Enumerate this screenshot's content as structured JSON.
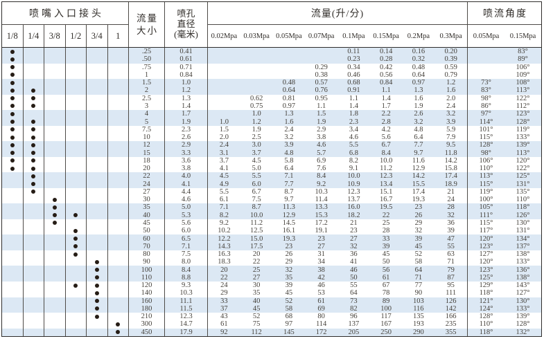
{
  "header": {
    "inlet_title": "喷嘴入口接头",
    "inlet_sizes": [
      "1/8",
      "1/4",
      "3/8",
      "1/2",
      "3/4",
      "1"
    ],
    "flow_size_line1": "流量",
    "flow_size_line2": "大小",
    "orifice_line1": "喷孔",
    "orifice_line2": "直径",
    "orifice_line3": "(毫米)",
    "flow_title": "流量(升/分)",
    "pressures": [
      "0.02Mpa",
      "0.03Mpa",
      "0.05Mpa",
      "0.07Mpa",
      "0.1Mpa",
      "0.15Mpa",
      "0.2Mpa",
      "0.3Mpa"
    ],
    "angle_title": "喷流角度",
    "angle_pressures": [
      "0.05Mpa",
      "0.15Mpa"
    ]
  },
  "colors": {
    "stripe_blue": "#dce8f4",
    "border_dark": "#2e2c2a",
    "border_inner": "#4d4a46",
    "text": "#44403a",
    "dot": "#261d16"
  },
  "rows": [
    {
      "size": ".25",
      "dia": "0.41",
      "dots": [
        1,
        0,
        0,
        0,
        0,
        0
      ],
      "flows": [
        "",
        "",
        "",
        "",
        "0.11",
        "0.14",
        "0.16",
        "0.20"
      ],
      "angles": [
        "",
        "83°"
      ]
    },
    {
      "size": ".50",
      "dia": "0.61",
      "dots": [
        1,
        0,
        0,
        0,
        0,
        0
      ],
      "flows": [
        "",
        "",
        "",
        "",
        "0.23",
        "0.28",
        "0.32",
        "0.39"
      ],
      "angles": [
        "",
        "89°"
      ]
    },
    {
      "size": ".75",
      "dia": "0.71",
      "dots": [
        1,
        0,
        0,
        0,
        0,
        0
      ],
      "flows": [
        "",
        "",
        "",
        "0.29",
        "0.34",
        "0.42",
        "0.48",
        "0.59"
      ],
      "angles": [
        "",
        "106°"
      ]
    },
    {
      "size": "1",
      "dia": "0.84",
      "dots": [
        1,
        0,
        0,
        0,
        0,
        0
      ],
      "flows": [
        "",
        "",
        "",
        "0.38",
        "0.46",
        "0.56",
        "0.64",
        "0.79"
      ],
      "angles": [
        "",
        "109°"
      ]
    },
    {
      "size": "1.5",
      "dia": "1.0",
      "dots": [
        1,
        0,
        0,
        0,
        0,
        0
      ],
      "flows": [
        "",
        "",
        "0.48",
        "0.57",
        "0.68",
        "0.84",
        "0.97",
        "1.2"
      ],
      "angles": [
        "73°",
        "108°"
      ]
    },
    {
      "size": "2",
      "dia": "1.2",
      "dots": [
        1,
        1,
        0,
        0,
        0,
        0
      ],
      "flows": [
        "",
        "",
        "0.64",
        "0.76",
        "0.91",
        "1.1",
        "1.3",
        "1.6"
      ],
      "angles": [
        "83°",
        "113°"
      ]
    },
    {
      "size": "2.5",
      "dia": "1.3",
      "dots": [
        1,
        1,
        0,
        0,
        0,
        0
      ],
      "flows": [
        "",
        "0.62",
        "0.81",
        "0.95",
        "1.1",
        "1.4",
        "1.6",
        "2.0"
      ],
      "angles": [
        "98°",
        "122°"
      ]
    },
    {
      "size": "3",
      "dia": "1.4",
      "dots": [
        1,
        1,
        0,
        0,
        0,
        0
      ],
      "flows": [
        "",
        "0.75",
        "0.97",
        "1.1",
        "1.4",
        "1.7",
        "1.9",
        "2.4"
      ],
      "angles": [
        "86°",
        "112°"
      ]
    },
    {
      "size": "4",
      "dia": "1.7",
      "dots": [
        1,
        0,
        0,
        0,
        0,
        0
      ],
      "flows": [
        "",
        "1.0",
        "1.3",
        "1.5",
        "1.8",
        "2.2",
        "2.6",
        "3.2"
      ],
      "angles": [
        "97°",
        "123°"
      ]
    },
    {
      "size": "5",
      "dia": "1.9",
      "dots": [
        1,
        1,
        0,
        0,
        0,
        0
      ],
      "flows": [
        "1.0",
        "1.2",
        "1.6",
        "1.9",
        "2.3",
        "2.8",
        "3.2",
        "3.9"
      ],
      "angles": [
        "114°",
        "128°"
      ]
    },
    {
      "size": "7.5",
      "dia": "2.3",
      "dots": [
        1,
        1,
        0,
        0,
        0,
        0
      ],
      "flows": [
        "1.5",
        "1.9",
        "2.4",
        "2.9",
        "3.4",
        "4.2",
        "4.8",
        "5.9"
      ],
      "angles": [
        "101°",
        "119°"
      ]
    },
    {
      "size": "10",
      "dia": "2.6",
      "dots": [
        1,
        1,
        0,
        0,
        0,
        0
      ],
      "flows": [
        "2.0",
        "2.5",
        "3.2",
        "3.8",
        "4.6",
        "5.6",
        "6.4",
        "7.9"
      ],
      "angles": [
        "115°",
        "133°"
      ]
    },
    {
      "size": "12",
      "dia": "2.9",
      "dots": [
        1,
        1,
        0,
        0,
        0,
        0
      ],
      "flows": [
        "2.4",
        "3.0",
        "3.9",
        "4.6",
        "5.5",
        "6.7",
        "7.7",
        "9.5"
      ],
      "angles": [
        "128°",
        "139°"
      ]
    },
    {
      "size": "15",
      "dia": "3.3",
      "dots": [
        1,
        1,
        0,
        0,
        0,
        0
      ],
      "flows": [
        "3.1",
        "3.7",
        "4.8",
        "5.7",
        "6.8",
        "8.4",
        "9.7",
        "11.8"
      ],
      "angles": [
        "98°",
        "113°"
      ]
    },
    {
      "size": "18",
      "dia": "3.6",
      "dots": [
        1,
        1,
        0,
        0,
        0,
        0
      ],
      "flows": [
        "3.7",
        "4.5",
        "5.8",
        "6.9",
        "8.2",
        "10.0",
        "11.6",
        "14.2"
      ],
      "angles": [
        "106°",
        "120°"
      ]
    },
    {
      "size": "20",
      "dia": "3.8",
      "dots": [
        1,
        1,
        0,
        0,
        0,
        0
      ],
      "flows": [
        "4.1",
        "5.0",
        "6.4",
        "7.6",
        "9.1",
        "11.2",
        "12.9",
        "15.8"
      ],
      "angles": [
        "110°",
        "122°"
      ]
    },
    {
      "size": "22",
      "dia": "4.0",
      "dots": [
        0,
        1,
        0,
        0,
        0,
        0
      ],
      "flows": [
        "4.5",
        "5.5",
        "7.1",
        "8.4",
        "10.0",
        "12.3",
        "14.2",
        "17.4"
      ],
      "angles": [
        "113°",
        "125°"
      ]
    },
    {
      "size": "24",
      "dia": "4.1",
      "dots": [
        0,
        1,
        0,
        0,
        0,
        0
      ],
      "flows": [
        "4.9",
        "6.0",
        "7.7",
        "9.2",
        "10.9",
        "13.4",
        "15.5",
        "18.9"
      ],
      "angles": [
        "115°",
        "131°"
      ]
    },
    {
      "size": "27",
      "dia": "4.4",
      "dots": [
        0,
        1,
        0,
        0,
        0,
        0
      ],
      "flows": [
        "5.5",
        "6.7",
        "8.7",
        "10.3",
        "12.3",
        "15.1",
        "17.4",
        "21"
      ],
      "angles": [
        "119°",
        "135°"
      ]
    },
    {
      "size": "30",
      "dia": "4.6",
      "dots": [
        0,
        0,
        1,
        0,
        0,
        0
      ],
      "flows": [
        "6.1",
        "7.5",
        "9.7",
        "11.4",
        "13.7",
        "16.7",
        "19.3",
        "24"
      ],
      "angles": [
        "100°",
        "110°"
      ]
    },
    {
      "size": "35",
      "dia": "5.0",
      "dots": [
        0,
        0,
        1,
        0,
        0,
        0
      ],
      "flows": [
        "7.1",
        "8.7",
        "11.3",
        "13.3",
        "16.0",
        "19.5",
        "23",
        "28"
      ],
      "angles": [
        "105°",
        "118°"
      ]
    },
    {
      "size": "40",
      "dia": "5.3",
      "dots": [
        0,
        0,
        1,
        1,
        0,
        0
      ],
      "flows": [
        "8.2",
        "10.0",
        "12.9",
        "15.3",
        "18.2",
        "22",
        "26",
        "32"
      ],
      "angles": [
        "111°",
        "126°"
      ]
    },
    {
      "size": "45",
      "dia": "5.6",
      "dots": [
        0,
        0,
        1,
        0,
        0,
        0
      ],
      "flows": [
        "9.2",
        "11.2",
        "14.5",
        "17.2",
        "21",
        "25",
        "29",
        "36"
      ],
      "angles": [
        "115°",
        "130°"
      ]
    },
    {
      "size": "50",
      "dia": "6.0",
      "dots": [
        0,
        0,
        0,
        1,
        0,
        0
      ],
      "flows": [
        "10.2",
        "12.5",
        "16.1",
        "19.1",
        "23",
        "28",
        "32",
        "39"
      ],
      "angles": [
        "117°",
        "131°"
      ]
    },
    {
      "size": "60",
      "dia": "6.5",
      "dots": [
        0,
        0,
        0,
        1,
        0,
        0
      ],
      "flows": [
        "12.2",
        "15.0",
        "19.3",
        "23",
        "27",
        "33",
        "39",
        "47"
      ],
      "angles": [
        "120°",
        "134°"
      ]
    },
    {
      "size": "70",
      "dia": "7.1",
      "dots": [
        0,
        0,
        0,
        1,
        0,
        0
      ],
      "flows": [
        "14.3",
        "17.5",
        "23",
        "27",
        "32",
        "39",
        "45",
        "55"
      ],
      "angles": [
        "123°",
        "137°"
      ]
    },
    {
      "size": "80",
      "dia": "7.5",
      "dots": [
        0,
        0,
        0,
        1,
        0,
        0
      ],
      "flows": [
        "16.3",
        "20",
        "26",
        "31",
        "36",
        "45",
        "52",
        "63"
      ],
      "angles": [
        "127°",
        "138°"
      ]
    },
    {
      "size": "90",
      "dia": "8.0",
      "dots": [
        0,
        0,
        0,
        0,
        1,
        0
      ],
      "flows": [
        "18.3",
        "22",
        "29",
        "34",
        "41",
        "50",
        "58",
        "71"
      ],
      "angles": [
        "120°",
        "133°"
      ]
    },
    {
      "size": "100",
      "dia": "8.4",
      "dots": [
        0,
        0,
        0,
        0,
        1,
        0
      ],
      "flows": [
        "20",
        "25",
        "32",
        "38",
        "46",
        "56",
        "64",
        "79"
      ],
      "angles": [
        "123°",
        "136°"
      ]
    },
    {
      "size": "110",
      "dia": "8.8",
      "dots": [
        0,
        0,
        0,
        0,
        1,
        0
      ],
      "flows": [
        "22",
        "27",
        "35",
        "42",
        "50",
        "61",
        "71",
        "87"
      ],
      "angles": [
        "125°",
        "138°"
      ]
    },
    {
      "size": "120",
      "dia": "9.3",
      "dots": [
        0,
        0,
        0,
        1,
        1,
        0
      ],
      "flows": [
        "24",
        "30",
        "39",
        "46",
        "55",
        "67",
        "77",
        "95"
      ],
      "angles": [
        "129°",
        "143°"
      ]
    },
    {
      "size": "140",
      "dia": "10.3",
      "dots": [
        0,
        0,
        0,
        0,
        1,
        0
      ],
      "flows": [
        "29",
        "35",
        "45",
        "53",
        "64",
        "78",
        "90",
        "111"
      ],
      "angles": [
        "118°",
        "127°"
      ]
    },
    {
      "size": "160",
      "dia": "11.1",
      "dots": [
        0,
        0,
        0,
        0,
        1,
        0
      ],
      "flows": [
        "33",
        "40",
        "52",
        "61",
        "73",
        "89",
        "103",
        "126"
      ],
      "angles": [
        "121°",
        "130°"
      ]
    },
    {
      "size": "180",
      "dia": "11.5",
      "dots": [
        0,
        0,
        0,
        0,
        1,
        0
      ],
      "flows": [
        "37",
        "45",
        "58",
        "69",
        "82",
        "100",
        "116",
        "142"
      ],
      "angles": [
        "124°",
        "133°"
      ]
    },
    {
      "size": "210",
      "dia": "12.3",
      "dots": [
        0,
        0,
        0,
        0,
        1,
        0
      ],
      "flows": [
        "43",
        "52",
        "68",
        "80",
        "96",
        "117",
        "135",
        "166"
      ],
      "angles": [
        "128°",
        "139°"
      ]
    },
    {
      "size": "300",
      "dia": "14.7",
      "dots": [
        0,
        0,
        0,
        0,
        0,
        1
      ],
      "flows": [
        "61",
        "75",
        "97",
        "114",
        "137",
        "167",
        "193",
        "235"
      ],
      "angles": [
        "110°",
        "128°"
      ]
    },
    {
      "size": "450",
      "dia": "17.9",
      "dots": [
        0,
        0,
        0,
        0,
        0,
        1
      ],
      "flows": [
        "92",
        "112",
        "145",
        "172",
        "205",
        "250",
        "290",
        "355"
      ],
      "angles": [
        "118°",
        "132°"
      ]
    }
  ]
}
